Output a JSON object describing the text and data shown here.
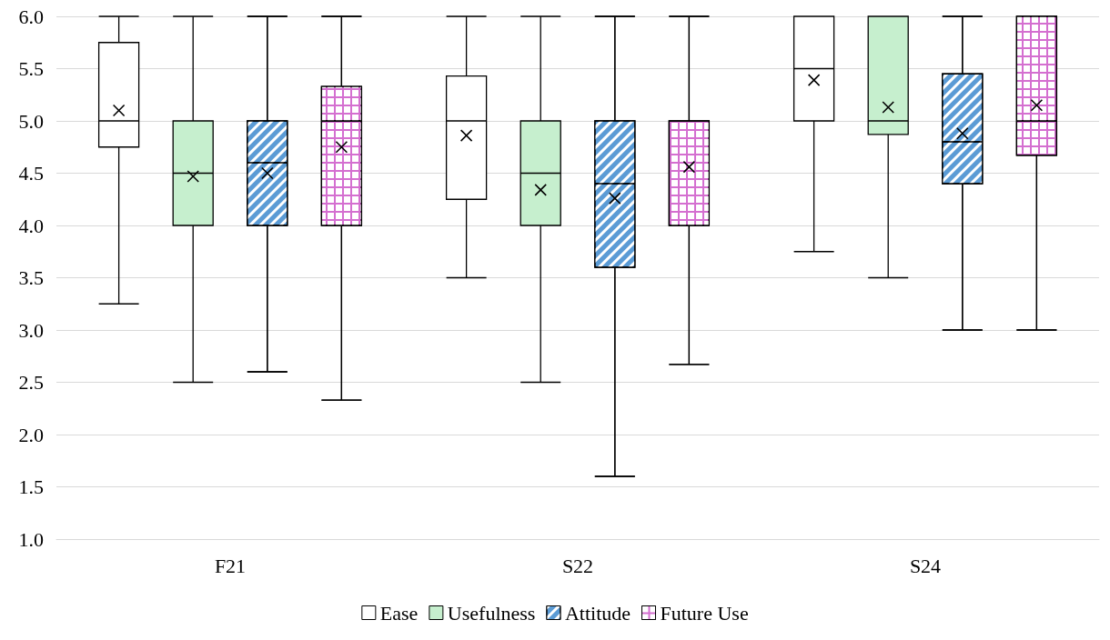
{
  "chart_data": {
    "type": "box",
    "categories": [
      "F21",
      "S22",
      "S24"
    ],
    "ylim": [
      1,
      6
    ],
    "yticks": [
      {
        "value": 1,
        "label": "1.0"
      },
      {
        "value": 1.5,
        "label": "1.5"
      },
      {
        "value": 2,
        "label": "2.0"
      },
      {
        "value": 2.5,
        "label": "2.5"
      },
      {
        "value": 3,
        "label": "3.0"
      },
      {
        "value": 3.5,
        "label": "3.5"
      },
      {
        "value": 4,
        "label": "4.0"
      },
      {
        "value": 4.5,
        "label": "4.5"
      },
      {
        "value": 5,
        "label": "5.0"
      },
      {
        "value": 5.5,
        "label": "5.5"
      },
      {
        "value": 6,
        "label": "6.0"
      }
    ],
    "grid": "y",
    "legend": "bottom",
    "marker": "cross",
    "series": [
      {
        "name": "Ease",
        "color": "#ffffff",
        "boxes": [
          {
            "low": 3.25,
            "q1": 4.75,
            "median": 5,
            "q3": 5.75,
            "high": 6,
            "mean": 5.1
          },
          {
            "low": 3.5,
            "q1": 4.25,
            "median": 5,
            "q3": 5.43,
            "high": 6,
            "mean": 4.86
          },
          {
            "low": 3.75,
            "q1": 5,
            "median": 5.5,
            "q3": 6,
            "high": 6,
            "mean": 5.39
          }
        ]
      },
      {
        "name": "Usefulness",
        "color": "#c6efce",
        "boxes": [
          {
            "low": 2.5,
            "q1": 4,
            "median": 4.5,
            "q3": 5,
            "high": 6,
            "mean": 4.47
          },
          {
            "low": 2.5,
            "q1": 4,
            "median": 4.5,
            "q3": 5,
            "high": 6,
            "mean": 4.34
          },
          {
            "low": 3.5,
            "q1": 4.87,
            "median": 5,
            "q3": 6,
            "high": 6,
            "mean": 5.13
          }
        ]
      },
      {
        "name": "Attitude",
        "color": "#5b9bd5",
        "boxes": [
          {
            "low": 2.6,
            "q1": 4,
            "median": 4.6,
            "q3": 5,
            "high": 6,
            "mean": 4.5
          },
          {
            "low": 1.6,
            "q1": 3.6,
            "median": 4.4,
            "q3": 5,
            "high": 6,
            "mean": 4.26
          },
          {
            "low": 3,
            "q1": 4.4,
            "median": 4.8,
            "q3": 5.45,
            "high": 6,
            "mean": 4.88
          }
        ]
      },
      {
        "name": "Future Use",
        "color": "#d46fd0",
        "boxes": [
          {
            "low": 2.33,
            "q1": 4,
            "median": 5,
            "q3": 5.33,
            "high": 6,
            "mean": 4.75
          },
          {
            "low": 2.67,
            "q1": 4,
            "median": 5,
            "q3": 5,
            "high": 6,
            "mean": 4.56
          },
          {
            "low": 3,
            "q1": 4.67,
            "median": 5,
            "q3": 6,
            "high": 6,
            "mean": 5.15
          }
        ]
      }
    ]
  }
}
